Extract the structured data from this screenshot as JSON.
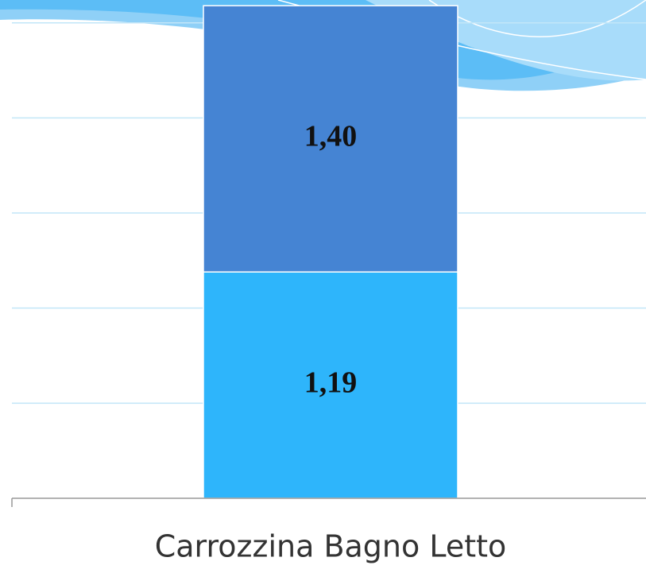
{
  "chart_data": {
    "type": "bar",
    "stacked": true,
    "categories": [
      "Carrozzina Bagno Letto"
    ],
    "series": [
      {
        "color": "#2eb5fb",
        "values": [
          1.19
        ],
        "value_labels": [
          "1,19"
        ]
      },
      {
        "color": "#4584d3",
        "values": [
          1.4
        ],
        "value_labels": [
          "1,40"
        ]
      }
    ],
    "ylim": [
      0,
      2.62
    ],
    "yticks": [
      0,
      0.5,
      1,
      1.5,
      2,
      2.5
    ],
    "grid": true
  }
}
